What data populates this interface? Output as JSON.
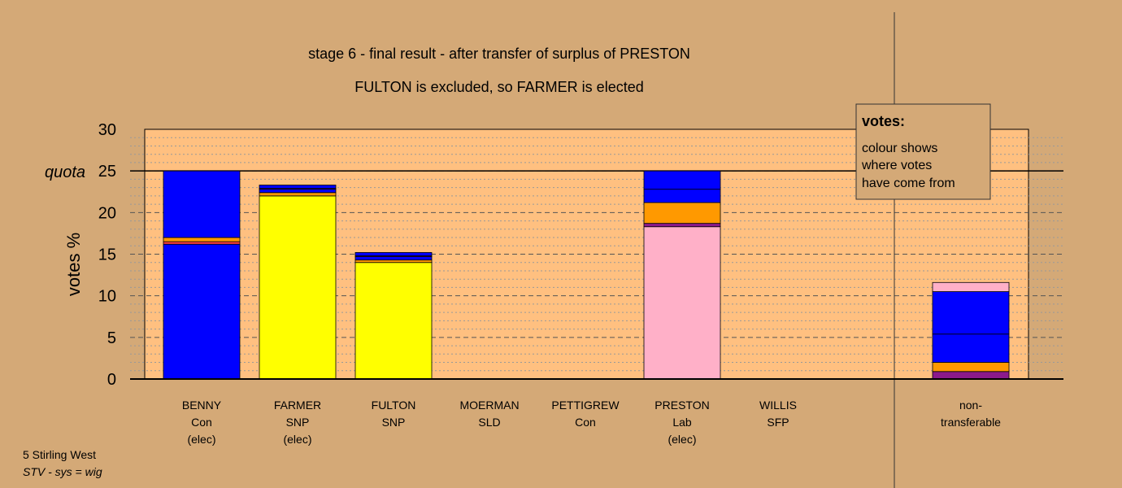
{
  "chart_data": {
    "type": "bar",
    "stacked": true,
    "title": "stage 6 - final result - after transfer of surplus of PRESTON",
    "subtitle": "FULTON is excluded, so FARMER is elected",
    "ylabel": "votes %",
    "ylim": [
      0,
      30
    ],
    "yticks": [
      0,
      5,
      10,
      15,
      20,
      25,
      30
    ],
    "quota": 25,
    "quota_label": "quota",
    "grid": true,
    "categories": [
      [
        "BENNY",
        "Con",
        "(elec)"
      ],
      [
        "FARMER",
        "SNP",
        "(elec)"
      ],
      [
        "FULTON",
        "SNP"
      ],
      [
        "MOERMAN",
        "SLD"
      ],
      [
        "PETTIGREW",
        "Con"
      ],
      [
        "PRESTON",
        "Lab",
        "(elec)"
      ],
      [
        "WILLIS",
        "SFP"
      ],
      [
        "non-",
        "transferable"
      ]
    ],
    "stacks": [
      [
        {
          "color": "#0000FF",
          "value": 16.2
        },
        {
          "color": "#FF4040",
          "value": 0.3
        },
        {
          "color": "#FF9900",
          "value": 0.5
        },
        {
          "color": "#0000FF",
          "value": 8.0
        }
      ],
      [
        {
          "color": "#FFFF00",
          "value": 22.0
        },
        {
          "color": "#FF9900",
          "value": 0.4
        },
        {
          "color": "#0000FF",
          "value": 0.4
        },
        {
          "color": "#8B1A8B",
          "value": 0.1
        },
        {
          "color": "#0000FF",
          "value": 0.4
        }
      ],
      [
        {
          "color": "#FFFF00",
          "value": 14.0
        },
        {
          "color": "#FF9900",
          "value": 0.3
        },
        {
          "color": "#0000FF",
          "value": 0.4
        },
        {
          "color": "#8B1A8B",
          "value": 0.1
        },
        {
          "color": "#0000FF",
          "value": 0.4
        }
      ],
      [],
      [],
      [
        {
          "color": "#FFB0C8",
          "value": 18.3
        },
        {
          "color": "#8B1A8B",
          "value": 0.4
        },
        {
          "color": "#FF9900",
          "value": 2.5
        },
        {
          "color": "#0000FF",
          "value": 1.6
        },
        {
          "color": "#0000FF",
          "value": 2.2
        }
      ],
      [],
      [
        {
          "color": "#8B1A8B",
          "value": 0.9
        },
        {
          "color": "#FF9900",
          "value": 1.1
        },
        {
          "color": "#0000FF",
          "value": 3.4
        },
        {
          "color": "#0000FF",
          "value": 5.1
        },
        {
          "color": "#FFB0C8",
          "value": 1.1
        }
      ]
    ],
    "legend": {
      "title": "votes:",
      "lines": [
        "colour shows",
        "where votes",
        "have come from"
      ],
      "position": "top-right"
    }
  },
  "footer": {
    "line1": "5 Stirling West",
    "line2": "STV - sys = wig"
  },
  "colors": {
    "background": "#D4A977",
    "plot_area": "#FFC080"
  }
}
